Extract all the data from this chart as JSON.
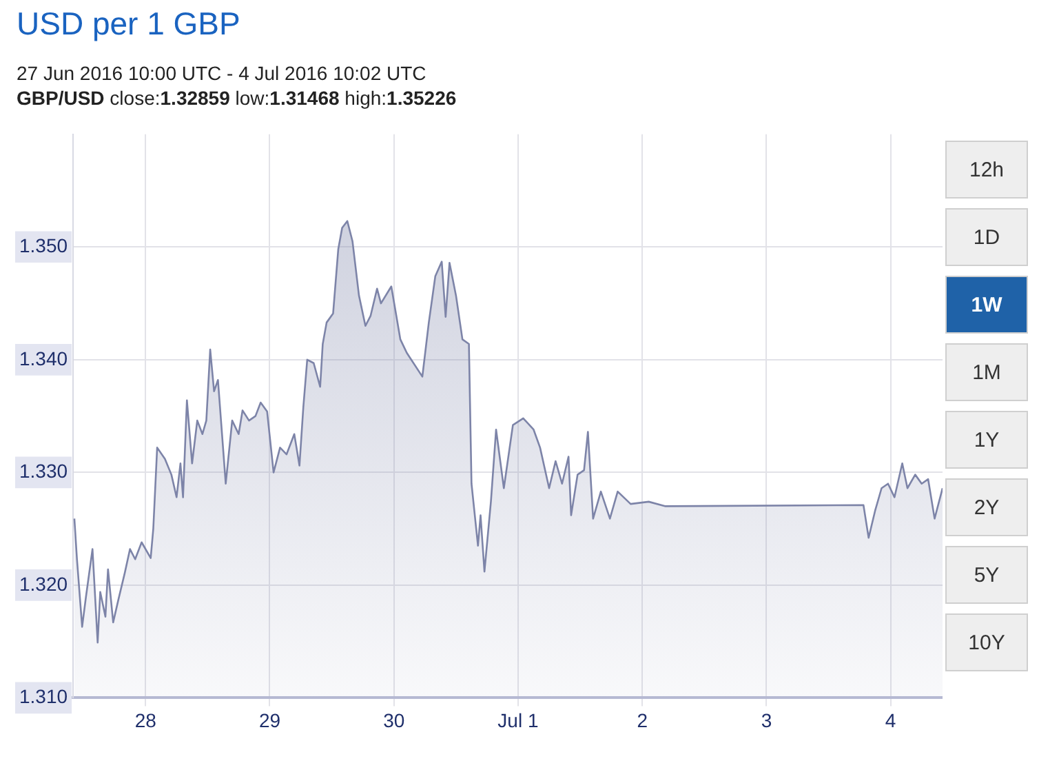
{
  "chart_data": [
    {
      "type": "area",
      "title": "USD per 1 GBP",
      "subtitle": "27 Jun 2016 10:00 UTC - 4 Jul 2016 10:02 UTC",
      "annotations": [
        "GBP/USD close:1.32859 low:1.31468 high:1.35226"
      ],
      "xlim": [
        "2016-06-27T10:00",
        "2016-07-04T10:02"
      ],
      "xticks": [
        {
          "value": "2016-06-28",
          "label": "28"
        },
        {
          "value": "2016-06-29",
          "label": "29"
        },
        {
          "value": "2016-06-30",
          "label": "30"
        },
        {
          "value": "2016-07-01",
          "label": "Jul 1"
        },
        {
          "value": "2016-07-02",
          "label": "2"
        },
        {
          "value": "2016-07-03",
          "label": "3"
        },
        {
          "value": "2016-07-04",
          "label": "4"
        }
      ],
      "ylim": [
        1.31,
        1.36
      ],
      "yticks": [
        {
          "value": 1.31,
          "label": "1.310"
        },
        {
          "value": 1.32,
          "label": "1.320"
        },
        {
          "value": 1.33,
          "label": "1.330"
        },
        {
          "value": 1.34,
          "label": "1.340"
        },
        {
          "value": 1.35,
          "label": "1.350"
        }
      ],
      "grid": true,
      "legend": false,
      "marker": "none",
      "line_style": "solid",
      "x": [
        "2016-06-27T10:15",
        "2016-06-27T10:45",
        "2016-06-27T11:45",
        "2016-06-27T12:30",
        "2016-06-27T13:45",
        "2016-06-27T14:45",
        "2016-06-27T15:15",
        "2016-06-27T16:15",
        "2016-06-27T16:45",
        "2016-06-27T17:45",
        "2016-06-27T18:45",
        "2016-06-27T20:00",
        "2016-06-27T21:00",
        "2016-06-27T22:00",
        "2016-06-27T23:15",
        "2016-06-28T01:00",
        "2016-06-28T01:30",
        "2016-06-28T02:15",
        "2016-06-28T03:45",
        "2016-06-28T05:00",
        "2016-06-28T06:00",
        "2016-06-28T06:45",
        "2016-06-28T07:15",
        "2016-06-28T08:00",
        "2016-06-28T09:00",
        "2016-06-28T10:00",
        "2016-06-28T11:00",
        "2016-06-28T11:45",
        "2016-06-28T12:30",
        "2016-06-28T13:15",
        "2016-06-28T14:00",
        "2016-06-28T15:30",
        "2016-06-28T16:45",
        "2016-06-28T18:00",
        "2016-06-28T18:45",
        "2016-06-28T20:00",
        "2016-06-28T21:15",
        "2016-06-28T22:15",
        "2016-06-28T23:30",
        "2016-06-29T00:45",
        "2016-06-29T02:00",
        "2016-06-29T03:15",
        "2016-06-29T04:45",
        "2016-06-29T05:45",
        "2016-06-29T06:30",
        "2016-06-29T07:15",
        "2016-06-29T08:30",
        "2016-06-29T09:45",
        "2016-06-29T10:15",
        "2016-06-29T11:00",
        "2016-06-29T12:15",
        "2016-06-29T13:15",
        "2016-06-29T14:00",
        "2016-06-29T15:00",
        "2016-06-29T16:00",
        "2016-06-29T17:15",
        "2016-06-29T18:30",
        "2016-06-29T19:30",
        "2016-06-29T20:45",
        "2016-06-29T21:30",
        "2016-06-29T23:30",
        "2016-06-30T01:15",
        "2016-06-30T02:30",
        "2016-06-30T05:30",
        "2016-06-30T06:45",
        "2016-06-30T08:00",
        "2016-06-30T09:15",
        "2016-06-30T10:00",
        "2016-06-30T10:45",
        "2016-06-30T12:00",
        "2016-06-30T13:15",
        "2016-06-30T14:30",
        "2016-06-30T15:00",
        "2016-06-30T16:15",
        "2016-06-30T16:45",
        "2016-06-30T17:30",
        "2016-06-30T18:45",
        "2016-06-30T19:45",
        "2016-06-30T21:15",
        "2016-06-30T23:00",
        "2016-07-01T01:00",
        "2016-07-01T03:00",
        "2016-07-01T04:15",
        "2016-07-01T06:00",
        "2016-07-01T07:15",
        "2016-07-01T08:30",
        "2016-07-01T09:45",
        "2016-07-01T10:15",
        "2016-07-01T11:30",
        "2016-07-01T12:45",
        "2016-07-01T13:30",
        "2016-07-01T14:30",
        "2016-07-01T16:00",
        "2016-07-01T17:45",
        "2016-07-01T19:15",
        "2016-07-01T21:45",
        "2016-07-02T01:15",
        "2016-07-02T04:30",
        "2016-07-03T18:45",
        "2016-07-03T19:45",
        "2016-07-03T21:00",
        "2016-07-03T22:15",
        "2016-07-03T23:30",
        "2016-07-04T00:45",
        "2016-07-04T02:15",
        "2016-07-04T03:15",
        "2016-07-04T04:45",
        "2016-07-04T06:00",
        "2016-07-04T07:15",
        "2016-07-04T08:30",
        "2016-07-04T10:02"
      ],
      "series": [
        {
          "color": "#7d84a8",
          "values": [
            1.3259,
            1.3223,
            1.3163,
            1.319,
            1.3232,
            1.3149,
            1.3194,
            1.3172,
            1.3214,
            1.3167,
            1.3187,
            1.3211,
            1.3232,
            1.3223,
            1.3238,
            1.3224,
            1.325,
            1.3322,
            1.3312,
            1.3298,
            1.3278,
            1.3308,
            1.3278,
            1.3364,
            1.3308,
            1.3346,
            1.3334,
            1.3346,
            1.3409,
            1.3372,
            1.3382,
            1.329,
            1.3346,
            1.3334,
            1.3355,
            1.3346,
            1.335,
            1.3362,
            1.3354,
            1.33,
            1.3322,
            1.3316,
            1.3334,
            1.3306,
            1.3358,
            1.34,
            1.3397,
            1.3376,
            1.3414,
            1.3433,
            1.3441,
            1.3498,
            1.3517,
            1.3523,
            1.3505,
            1.3457,
            1.343,
            1.3439,
            1.3463,
            1.345,
            1.3465,
            1.3418,
            1.3406,
            1.3385,
            1.3433,
            1.3474,
            1.3487,
            1.3438,
            1.3486,
            1.3457,
            1.3418,
            1.3414,
            1.329,
            1.3235,
            1.3262,
            1.3212,
            1.3274,
            1.3338,
            1.3286,
            1.3342,
            1.3348,
            1.3338,
            1.3322,
            1.3286,
            1.331,
            1.329,
            1.3314,
            1.3262,
            1.3298,
            1.3302,
            1.3336,
            1.3259,
            1.3283,
            1.3259,
            1.3283,
            1.3272,
            1.3274,
            1.327,
            1.3271,
            1.3242,
            1.3266,
            1.3286,
            1.329,
            1.3278,
            1.3308,
            1.3286,
            1.3298,
            1.329,
            1.3294,
            1.3259,
            1.3286
          ]
        }
      ]
    },
    {
      "type": "other",
      "categories": [
        "12h",
        "1D",
        "1W",
        "1M",
        "1Y",
        "2Y",
        "5Y",
        "10Y"
      ],
      "colors": [
        "#eeeeee",
        "#eeeeee",
        "#1f62a8",
        "#eeeeee",
        "#eeeeee",
        "#eeeeee",
        "#eeeeee",
        "#eeeeee"
      ]
    }
  ]
}
